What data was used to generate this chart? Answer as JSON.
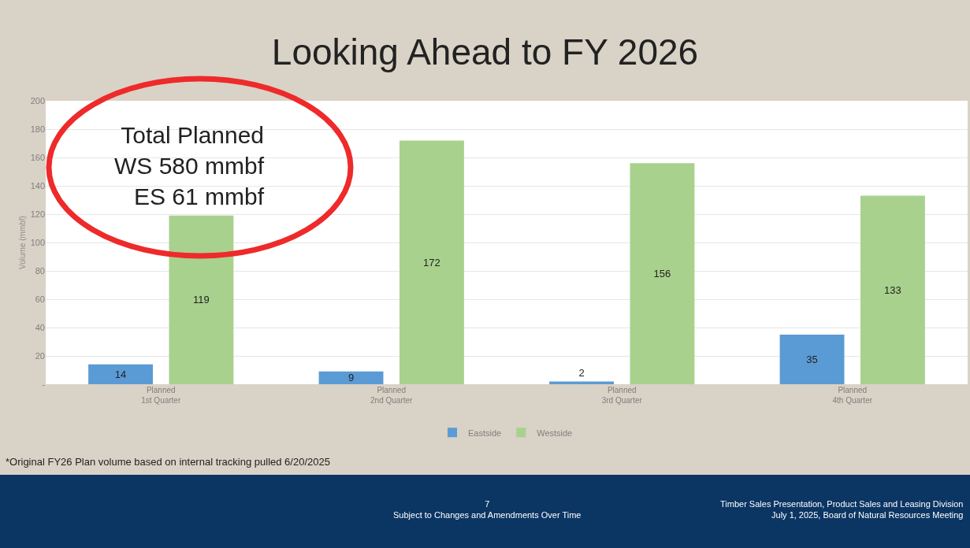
{
  "chart_data": {
    "type": "bar",
    "title": "Looking Ahead to FY 2026",
    "ylabel": "Volume (mmbf)",
    "categories": [
      "Planned\n1st Quarter",
      "Planned\n2nd Quarter",
      "Planned\n3rd Quarter",
      "Planned\n4th Quarter"
    ],
    "series": [
      {
        "name": "Eastside",
        "color": "#5b9bd5",
        "values": [
          14,
          9,
          2,
          35
        ]
      },
      {
        "name": "Westside",
        "color": "#a9d18e",
        "values": [
          119,
          172,
          156,
          133
        ]
      }
    ],
    "ylim": [
      0,
      200
    ],
    "yticks": [
      {
        "value": 0,
        "label": "-"
      },
      20,
      40,
      60,
      80,
      100,
      120,
      140,
      160,
      180,
      200
    ],
    "grid": "y",
    "legend": "bottom",
    "data_labels": true,
    "annotations": [
      "Total Planned\nWS 580 mmbf\nES 61 mmbf",
      "*Original FY26 Plan volume based on internal tracking pulled 6/20/2025",
      "7\nSubject to Changes and Amendments Over Time",
      "Timber Sales Presentation, Product Sales and Leasing Division\nJuly 1, 2025, Board of Natural Resources Meeting"
    ]
  }
}
